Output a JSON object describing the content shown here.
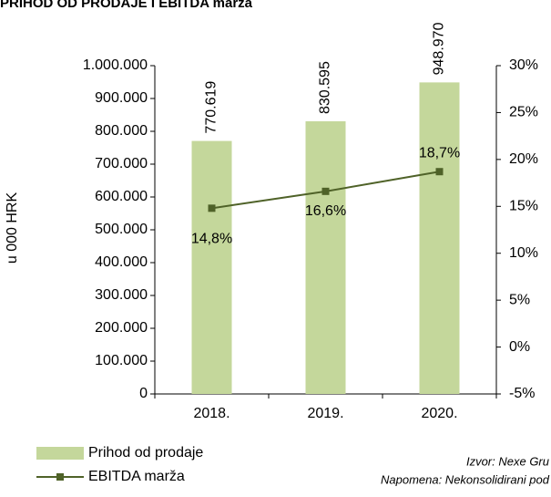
{
  "chart_data": {
    "type": "bar_line",
    "title": "PRIHOD OD PRODAJE I EBITDA marža",
    "y_label": "u 000 HRK",
    "categories": [
      "2018.",
      "2019.",
      "2020."
    ],
    "series": [
      {
        "name": "Prihod od prodaje",
        "type": "bar",
        "color": "#c4d79b",
        "values": [
          770619,
          830595,
          948970
        ],
        "value_labels": [
          "770.619",
          "830.595",
          "948.970"
        ]
      },
      {
        "name": "EBITDA marža",
        "type": "line",
        "axis": "y2",
        "color": "#4f6228",
        "values": [
          14.8,
          16.6,
          18.7
        ],
        "value_labels": [
          "14,8%",
          "16,6%",
          "18,7%"
        ]
      }
    ],
    "ylim": [
      0,
      1000000
    ],
    "yticks": [
      0,
      {
        "value": 100000,
        "label": "100.000"
      },
      {
        "value": 200000,
        "label": "200.000"
      },
      {
        "value": 300000,
        "label": "300.000"
      },
      {
        "value": 400000,
        "label": "400.000"
      },
      {
        "value": 500000,
        "label": "500.000"
      },
      {
        "value": 600000,
        "label": "600.000"
      },
      {
        "value": 700000,
        "label": "700.000"
      },
      {
        "value": 800000,
        "label": "800.000"
      },
      {
        "value": 900000,
        "label": "900.000"
      },
      {
        "value": 1000000,
        "label": "1.000.000"
      }
    ],
    "y2lim": [
      -5,
      30
    ],
    "y2ticks": [
      {
        "value": -5,
        "label": "-5%"
      },
      {
        "value": 0,
        "label": "0%"
      },
      {
        "value": 5,
        "label": "5%"
      },
      {
        "value": 10,
        "label": "10%"
      },
      {
        "value": 15,
        "label": "15%"
      },
      {
        "value": 20,
        "label": "20%"
      },
      {
        "value": 25,
        "label": "25%"
      },
      {
        "value": 30,
        "label": "30%"
      }
    ],
    "notes": [
      "Izvor: Nexe Gru",
      "Napomena: Nekonsolidirani pod"
    ]
  }
}
